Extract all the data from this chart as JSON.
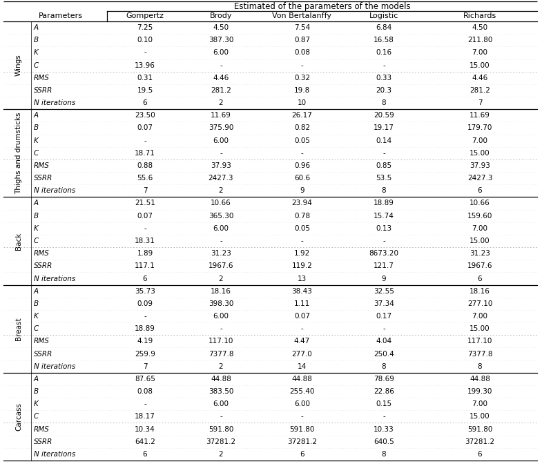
{
  "title": "Estimated of the parameters of the models",
  "col_headers": [
    "Parameters",
    "Gompertz",
    "Brody",
    "Von Bertalanffy",
    "Logistic",
    "Richards"
  ],
  "row_groups": [
    {
      "group_label": "Wings",
      "rows": [
        [
          "A",
          "7.25",
          "4.50",
          "7.54",
          "6.84",
          "4.50"
        ],
        [
          "B",
          "0.10",
          "387.30",
          "0.87",
          "16.58",
          "211.80"
        ],
        [
          "K",
          "-",
          "6.00",
          "0.08",
          "0.16",
          "7.00"
        ],
        [
          "C",
          "13.96",
          "-",
          "-",
          "-",
          "15.00"
        ],
        [
          "RMS",
          "0.31",
          "4.46",
          "0.32",
          "0.33",
          "4.46"
        ],
        [
          "SSRR",
          "19.5",
          "281.2",
          "19.8",
          "20.3",
          "281.2"
        ],
        [
          "N iterations",
          "6",
          "2",
          "10",
          "8",
          "7"
        ]
      ]
    },
    {
      "group_label": "Thighs and drumsticks",
      "rows": [
        [
          "A",
          "23.50",
          "11.69",
          "26.17",
          "20.59",
          "11.69"
        ],
        [
          "B",
          "0.07",
          "375.90",
          "0.82",
          "19.17",
          "179.70"
        ],
        [
          "K",
          "-",
          "6.00",
          "0.05",
          "0.14",
          "7.00"
        ],
        [
          "C",
          "18.71",
          "-",
          "-",
          "-",
          "15.00"
        ],
        [
          "RMS",
          "0.88",
          "37.93",
          "0.96",
          "0.85",
          "37.93"
        ],
        [
          "SSRR",
          "55.6",
          "2427.3",
          "60.6",
          "53.5",
          "2427.3"
        ],
        [
          "N iterations",
          "7",
          "2",
          "9",
          "8",
          "6"
        ]
      ]
    },
    {
      "group_label": "Back",
      "rows": [
        [
          "A",
          "21.51",
          "10.66",
          "23.94",
          "18.89",
          "10.66"
        ],
        [
          "B",
          "0.07",
          "365.30",
          "0.78",
          "15.74",
          "159.60"
        ],
        [
          "K",
          "-",
          "6.00",
          "0.05",
          "0.13",
          "7.00"
        ],
        [
          "C",
          "18.31",
          "-",
          "-",
          "-",
          "15.00"
        ],
        [
          "RMS",
          "1.89",
          "31.23",
          "1.92",
          "8673.20",
          "31.23"
        ],
        [
          "SSRR",
          "117.1",
          "1967.6",
          "119.2",
          "121.7",
          "1967.6"
        ],
        [
          "N iterations",
          "6",
          "2",
          "13",
          "9",
          "6"
        ]
      ]
    },
    {
      "group_label": "Breast",
      "rows": [
        [
          "A",
          "35.73",
          "18.16",
          "38.43",
          "32.55",
          "18.16"
        ],
        [
          "B",
          "0.09",
          "398.30",
          "1.11",
          "37.34",
          "277.10"
        ],
        [
          "K",
          "-",
          "6.00",
          "0.07",
          "0.17",
          "7.00"
        ],
        [
          "C",
          "18.89",
          "-",
          "-",
          "-",
          "15.00"
        ],
        [
          "RMS",
          "4.19",
          "117.10",
          "4.47",
          "4.04",
          "117.10"
        ],
        [
          "SSRR",
          "259.9",
          "7377.8",
          "277.0",
          "250.4",
          "7377.8"
        ],
        [
          "N iterations",
          "7",
          "2",
          "14",
          "8",
          "8"
        ]
      ]
    },
    {
      "group_label": "Carcass",
      "rows": [
        [
          "A",
          "87.65",
          "44.88",
          "44.88",
          "78.69",
          "44.88"
        ],
        [
          "B",
          "0.08",
          "383.50",
          "255.40",
          "22.86",
          "199.30"
        ],
        [
          "K",
          "-",
          "6.00",
          "6.00",
          "0.15",
          "7.00"
        ],
        [
          "C",
          "18.17",
          "-",
          "-",
          "-",
          "15.00"
        ],
        [
          "RMS",
          "10.34",
          "591.80",
          "591.80",
          "10.33",
          "591.80"
        ],
        [
          "SSRR",
          "641.2",
          "37281.2",
          "37281.2",
          "640.5",
          "37281.2"
        ],
        [
          "N iterations",
          "6",
          "2",
          "6",
          "8",
          "6"
        ]
      ]
    }
  ],
  "italic_abkc": [
    "A",
    "B",
    "K",
    "C"
  ],
  "italic_stats": [
    "RMS",
    "SSRR",
    "N iterations"
  ],
  "bg_color": "#ffffff",
  "text_color": "#000000",
  "dotted_after": [
    "C"
  ],
  "font_size": 7.5,
  "header_font_size": 8.0,
  "title_font_size": 8.5
}
